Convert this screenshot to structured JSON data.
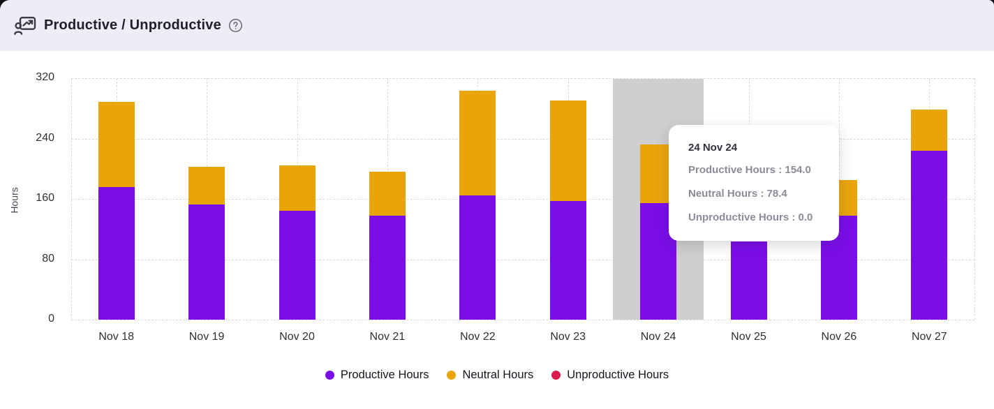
{
  "header": {
    "title": "Productive / Unproductive",
    "icon": "productivity-board-icon",
    "help_icon": "help-circle-icon"
  },
  "colors": {
    "productive": "#7a0de8",
    "neutral": "#e9a40a",
    "unproductive": "#dc1a4e",
    "header_bg": "#efecfa",
    "column_highlight": "#cfcfcf",
    "gridline": "#d9d9de"
  },
  "chart_data": {
    "type": "bar",
    "stacked": true,
    "title": "Productive / Unproductive",
    "xlabel": "",
    "ylabel": "Hours",
    "ylim": [
      0,
      320
    ],
    "yticks": [
      0,
      80,
      160,
      240,
      320
    ],
    "grid": true,
    "legend_position": "bottom",
    "categories": [
      "Nov 18",
      "Nov 19",
      "Nov 20",
      "Nov 21",
      "Nov 22",
      "Nov 23",
      "Nov 24",
      "Nov 25",
      "Nov 26",
      "Nov 27"
    ],
    "series": [
      {
        "name": "Productive Hours",
        "color": "#7a0de8",
        "values": [
          176,
          153,
          144,
          138,
          165,
          157,
          154.0,
          104,
          138,
          224
        ]
      },
      {
        "name": "Neutral Hours",
        "color": "#e9a40a",
        "values": [
          113,
          50,
          60,
          58,
          138,
          133,
          78.4,
          0,
          47,
          54
        ]
      },
      {
        "name": "Unproductive Hours",
        "color": "#dc1a4e",
        "values": [
          0,
          0,
          0,
          0,
          0,
          0,
          0.0,
          0,
          0,
          0
        ]
      }
    ],
    "highlighted_category": "Nov 24"
  },
  "tooltip": {
    "title": "24 Nov 24",
    "lines": [
      {
        "label": "Productive Hours",
        "value": "154.0"
      },
      {
        "label": "Neutral Hours",
        "value": "78.4"
      },
      {
        "label": "Unproductive Hours",
        "value": "0.0"
      }
    ]
  },
  "legend": {
    "items": [
      {
        "label": "Productive Hours",
        "color": "#7a0de8"
      },
      {
        "label": "Neutral Hours",
        "color": "#e9a40a"
      },
      {
        "label": "Unproductive Hours",
        "color": "#dc1a4e"
      }
    ]
  }
}
